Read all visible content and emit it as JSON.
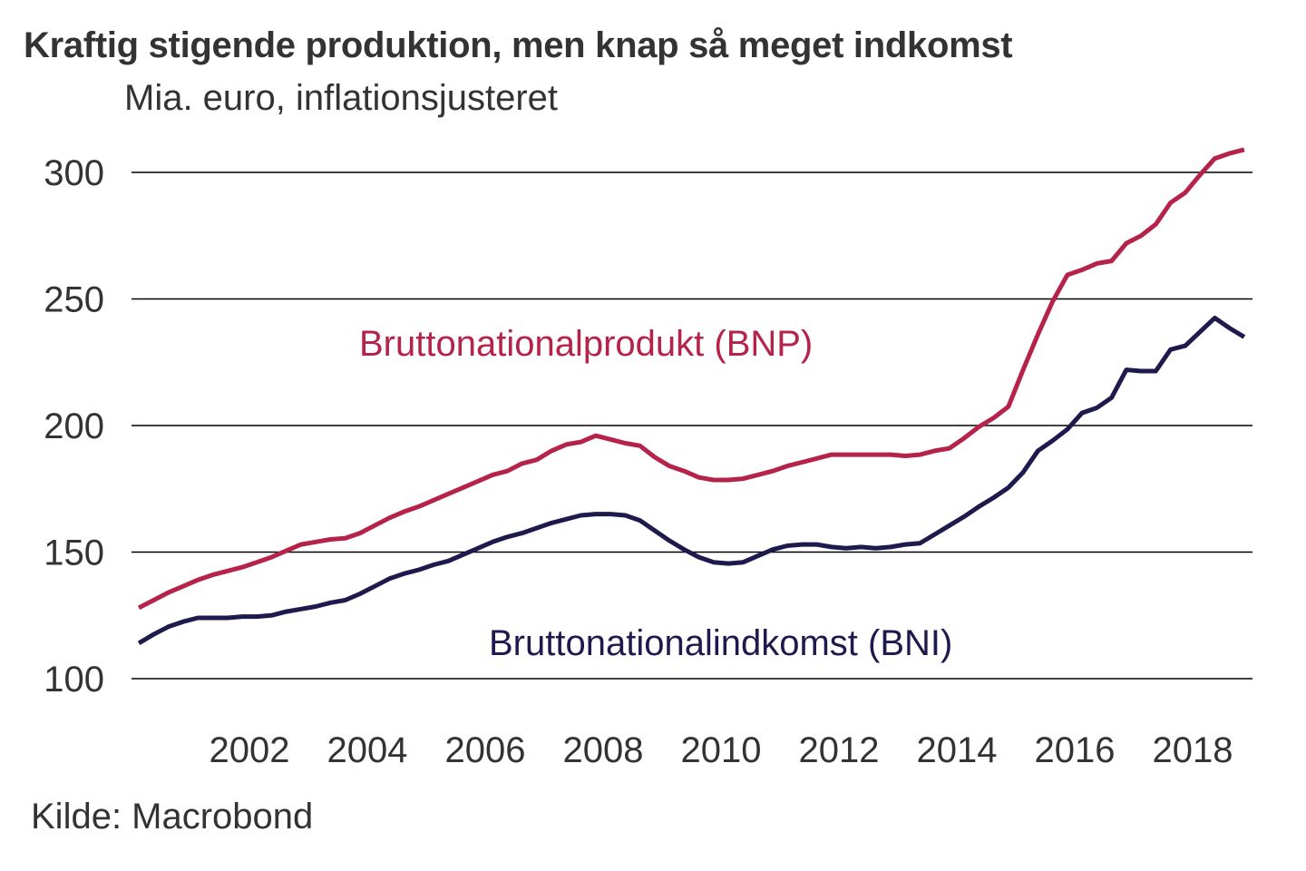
{
  "title": "Kraftig stigende produktion, men knap så meget indkomst",
  "subtitle": "Mia. euro, inflationsjusteret",
  "source": "Kilde: Macrobond",
  "chart_data": {
    "type": "line",
    "title": "Kraftig stigende produktion, men knap så meget indkomst",
    "ylabel": "Mia. euro, inflationsjusteret",
    "xlabel": "",
    "ylim": [
      100,
      300
    ],
    "xlim": [
      2000.0,
      2019.5
    ],
    "yticks": [
      300,
      250,
      200,
      150,
      100
    ],
    "xticks": [
      "2002",
      "2004",
      "2006",
      "2008",
      "2010",
      "2012",
      "2014",
      "2016",
      "2018"
    ],
    "grid": true,
    "frequency": "quarterly",
    "x_start": 2000.625,
    "x_step": 0.25,
    "series": [
      {
        "name": "Bruttonationalprodukt (BNP)",
        "color": "#B5224A",
        "values": [
          128,
          131,
          134,
          136.5,
          139,
          141,
          142.5,
          144,
          146,
          148,
          150.5,
          153,
          154,
          155,
          155.5,
          157.5,
          160.5,
          163.5,
          166,
          168,
          170.5,
          173,
          175.5,
          178,
          180.5,
          182,
          185,
          186.5,
          190,
          192.5,
          193.5,
          196,
          194.5,
          193,
          192,
          187.5,
          184,
          182,
          179.5,
          178.5,
          178.5,
          179,
          180.5,
          182,
          184,
          185.5,
          187,
          188.5,
          188.5,
          188.5,
          188.5,
          188.5,
          188,
          188.5,
          190,
          191,
          195,
          199.5,
          203,
          207.5,
          222,
          236,
          249,
          259.5,
          261.5,
          264,
          265,
          272,
          275,
          279.5,
          288,
          292,
          299,
          305.5,
          307.5,
          309
        ]
      },
      {
        "name": "Bruttonationalindkomst (BNI)",
        "color": "#1F1A4E",
        "values": [
          114,
          117.5,
          120.5,
          122.5,
          124,
          124,
          124,
          124.5,
          124.5,
          125,
          126.5,
          127.5,
          128.5,
          130,
          131,
          133.5,
          136.5,
          139.5,
          141.5,
          143,
          145,
          146.5,
          149,
          151.5,
          154,
          156,
          157.5,
          159.5,
          161.5,
          163,
          164.5,
          165,
          165,
          164.5,
          162.5,
          158.5,
          154.5,
          151,
          148,
          146,
          145.5,
          146,
          148.5,
          151,
          152.5,
          153,
          153,
          152,
          151.5,
          152,
          151.5,
          152,
          153,
          153.5,
          157,
          160.5,
          164,
          168,
          171.5,
          175.5,
          181.5,
          190,
          194,
          198.5,
          205,
          207,
          211,
          222,
          221.5,
          221.5,
          230,
          231.5,
          237,
          242.5,
          238.5,
          235
        ]
      }
    ],
    "annotations": [
      {
        "text": "Bruttonationalprodukt (BNP)",
        "series": 0
      },
      {
        "text": "Bruttonationalindkomst (BNI)",
        "series": 1
      }
    ]
  }
}
